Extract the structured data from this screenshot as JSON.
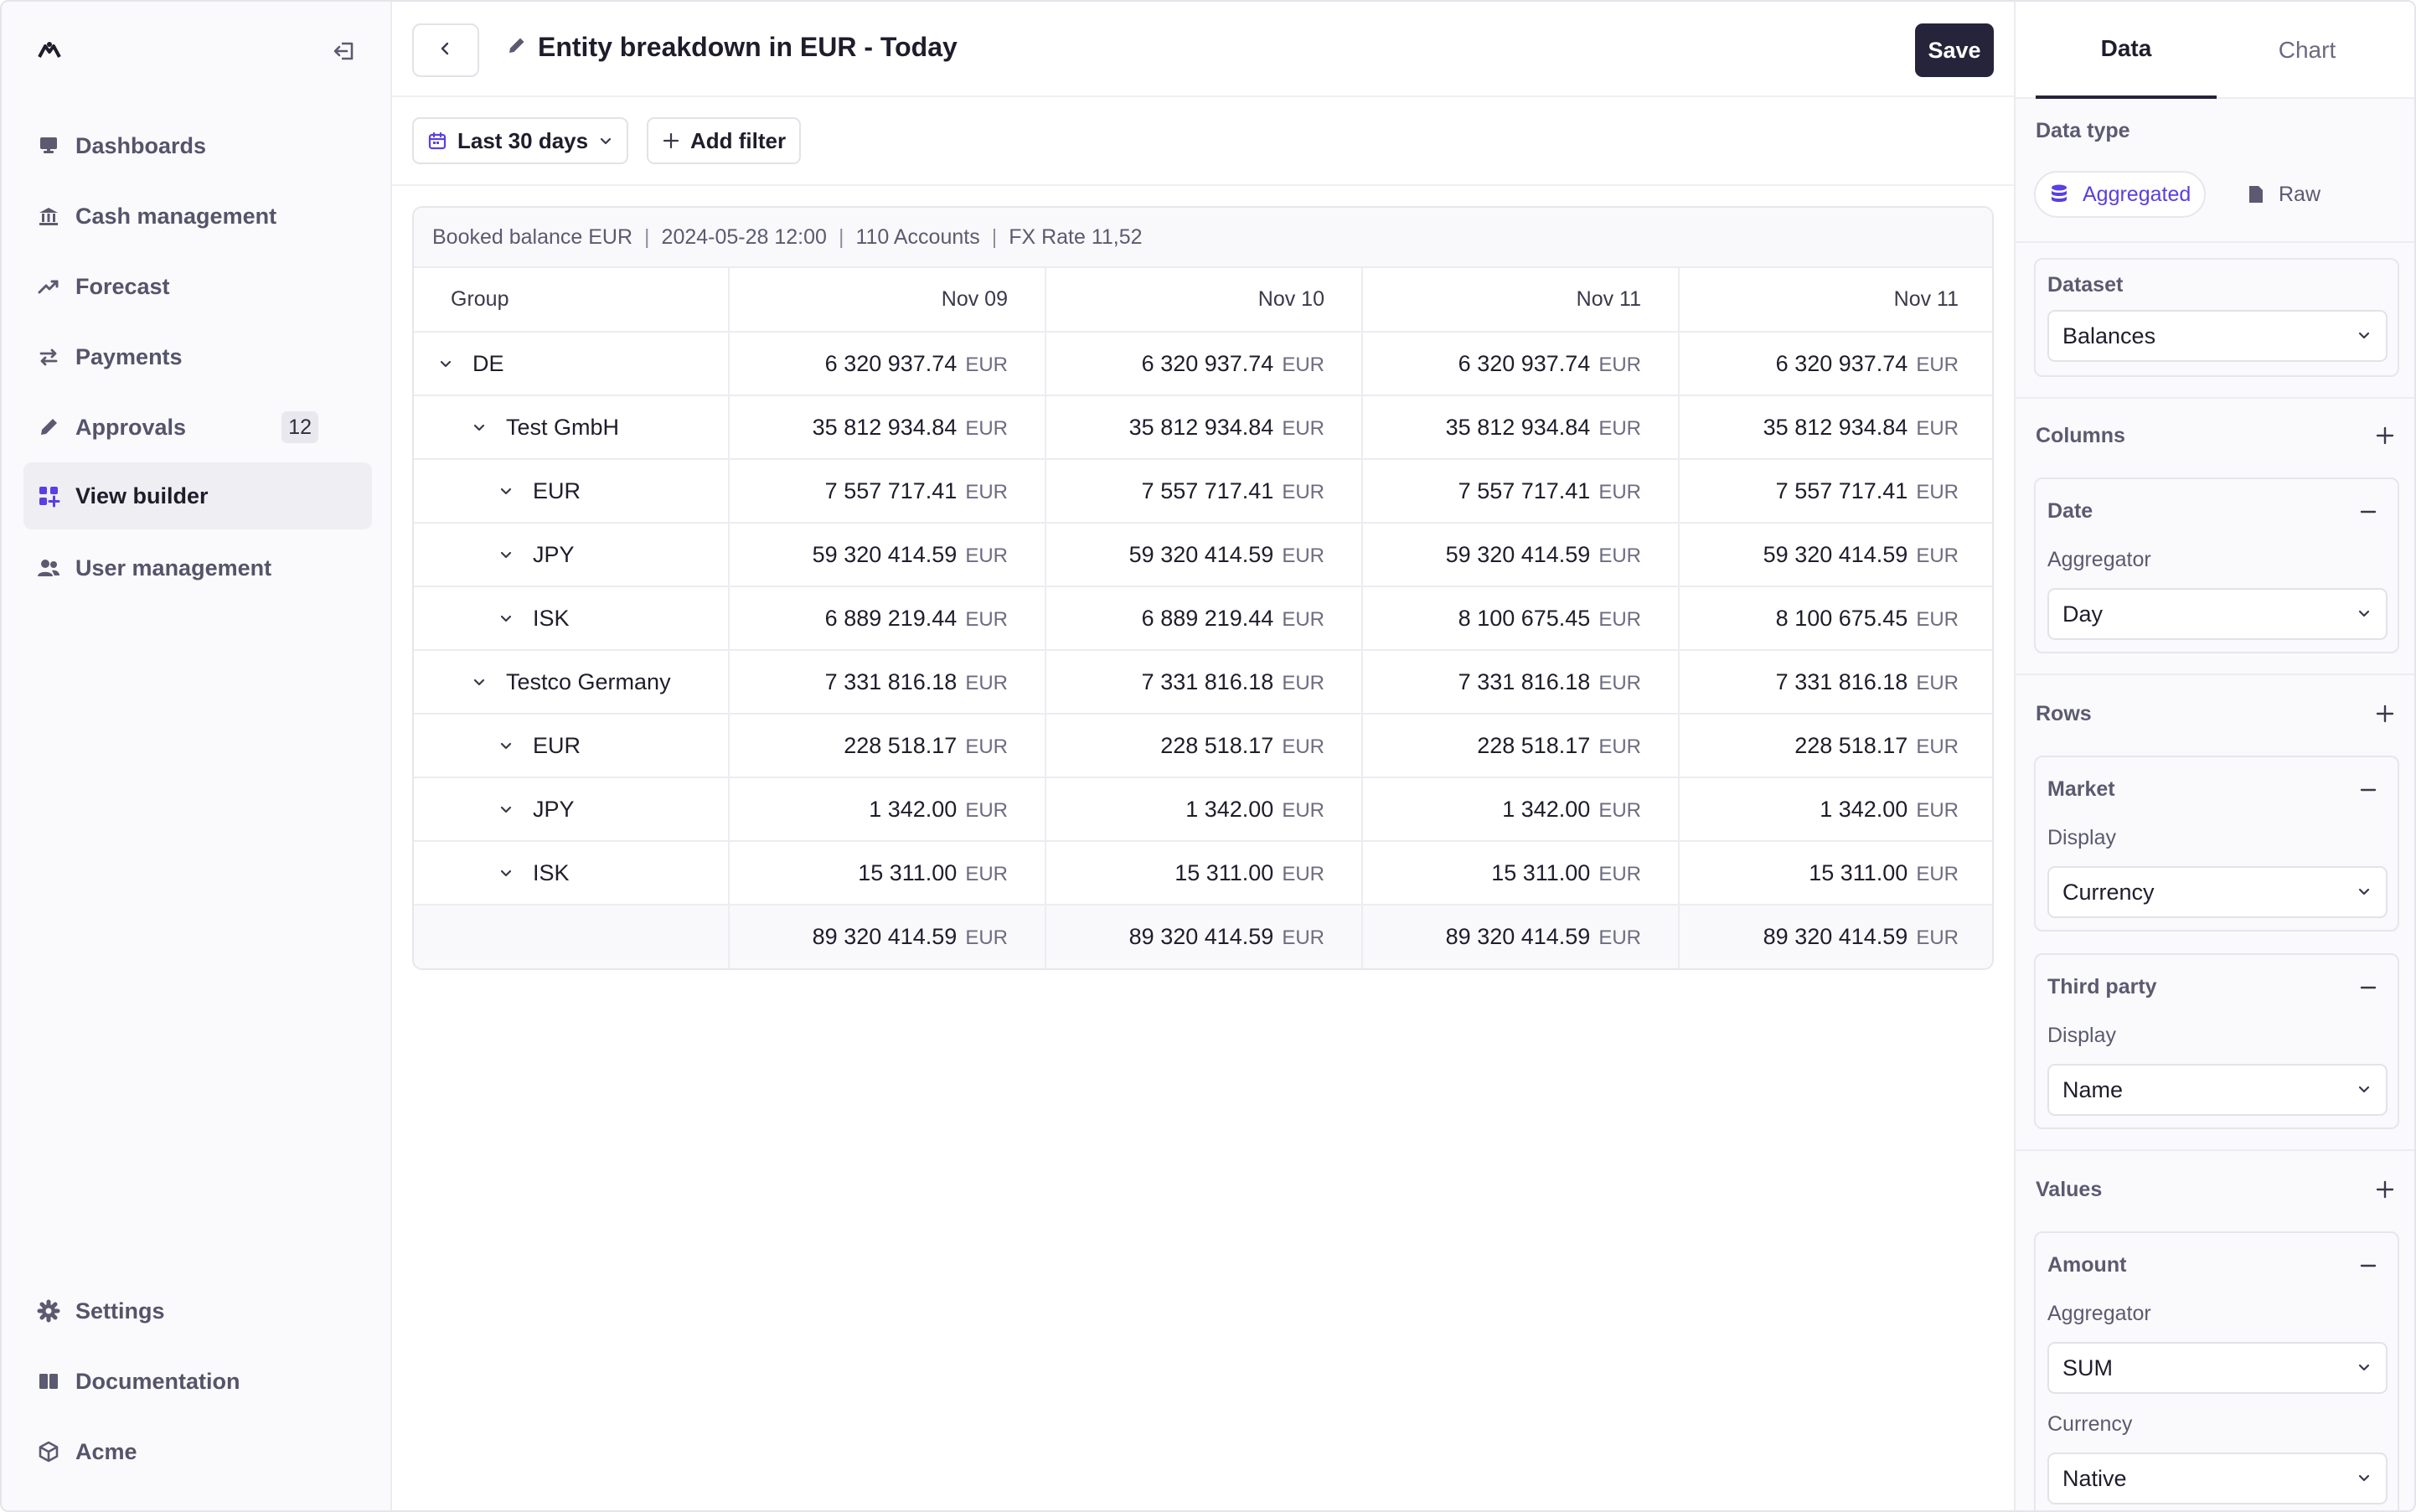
{
  "sidebar": {
    "items": [
      {
        "label": "Dashboards",
        "icon": "dashboard-icon"
      },
      {
        "label": "Cash management",
        "icon": "bank-icon"
      },
      {
        "label": "Forecast",
        "icon": "trend-icon"
      },
      {
        "label": "Payments",
        "icon": "transfer-icon"
      },
      {
        "label": "Approvals",
        "icon": "pencil-icon",
        "badge": "12"
      },
      {
        "label": "View builder",
        "icon": "grid-plus-icon",
        "active": true
      },
      {
        "label": "User management",
        "icon": "users-icon"
      }
    ],
    "bottom_items": [
      {
        "label": "Settings",
        "icon": "gear-icon"
      },
      {
        "label": "Documentation",
        "icon": "book-icon"
      },
      {
        "label": "Acme",
        "icon": "cube-icon"
      }
    ]
  },
  "header": {
    "title": "Entity breakdown in EUR - Today",
    "save_label": "Save"
  },
  "filters": {
    "date_range": "Last 30 days",
    "add_filter": "Add filter"
  },
  "info": {
    "balance": "Booked balance EUR",
    "timestamp": "2024-05-28 12:00",
    "accounts": "110 Accounts",
    "fx_rate": "FX Rate 11,52",
    "separator": "|"
  },
  "table": {
    "group_header": "Group",
    "columns": [
      "Nov 09",
      "Nov 10",
      "Nov 11",
      "Nov 11"
    ],
    "unit": "EUR",
    "rows": [
      {
        "label": "DE",
        "level": 0,
        "values": [
          "6 320 937.74",
          "6 320 937.74",
          "6 320 937.74",
          "6 320 937.74"
        ]
      },
      {
        "label": "Test GmbH",
        "level": 1,
        "values": [
          "35 812 934.84",
          "35 812 934.84",
          "35 812 934.84",
          "35 812 934.84"
        ]
      },
      {
        "label": "EUR",
        "level": 2,
        "values": [
          "7 557 717.41",
          "7 557 717.41",
          "7 557 717.41",
          "7 557 717.41"
        ]
      },
      {
        "label": "JPY",
        "level": 2,
        "values": [
          "59 320 414.59",
          "59 320 414.59",
          "59 320 414.59",
          "59 320 414.59"
        ]
      },
      {
        "label": "ISK",
        "level": 2,
        "values": [
          "6 889 219.44",
          "6 889 219.44",
          "8 100 675.45",
          "8 100 675.45"
        ]
      },
      {
        "label": "Testco Germany",
        "level": 1,
        "values": [
          "7 331 816.18",
          "7 331 816.18",
          "7 331 816.18",
          "7 331 816.18"
        ]
      },
      {
        "label": "EUR",
        "level": 2,
        "values": [
          "228 518.17",
          "228 518.17",
          "228 518.17",
          "228 518.17"
        ]
      },
      {
        "label": "JPY",
        "level": 2,
        "values": [
          "1 342.00",
          "1 342.00",
          "1 342.00",
          "1 342.00"
        ]
      },
      {
        "label": "ISK",
        "level": 2,
        "values": [
          "15 311.00",
          "15 311.00",
          "15 311.00",
          "15 311.00"
        ]
      }
    ],
    "totals": [
      "89 320 414.59",
      "89 320 414.59",
      "89 320 414.59",
      "89 320 414.59"
    ]
  },
  "panel": {
    "tabs": [
      "Data",
      "Chart"
    ],
    "data_type_label": "Data type",
    "data_type_options": [
      "Aggregated",
      "Raw"
    ],
    "dataset": {
      "label": "Dataset",
      "value": "Balances"
    },
    "columns": {
      "label": "Columns",
      "items": [
        {
          "name": "Date",
          "field_label": "Aggregator",
          "value": "Day"
        }
      ]
    },
    "rows": {
      "label": "Rows",
      "items": [
        {
          "name": "Market",
          "field_label": "Display",
          "value": "Currency"
        },
        {
          "name": "Third party",
          "field_label": "Display",
          "value": "Name"
        }
      ]
    },
    "values": {
      "label": "Values",
      "items": [
        {
          "name": "Amount",
          "field_label": "Aggregator",
          "value": "SUM",
          "field2_label": "Currency",
          "value2": "Native"
        }
      ]
    }
  },
  "colors": {
    "accent": "#5b3fe0",
    "primary_button": "#25243a",
    "text": "#1f1d2b",
    "muted": "#5b5a70"
  }
}
